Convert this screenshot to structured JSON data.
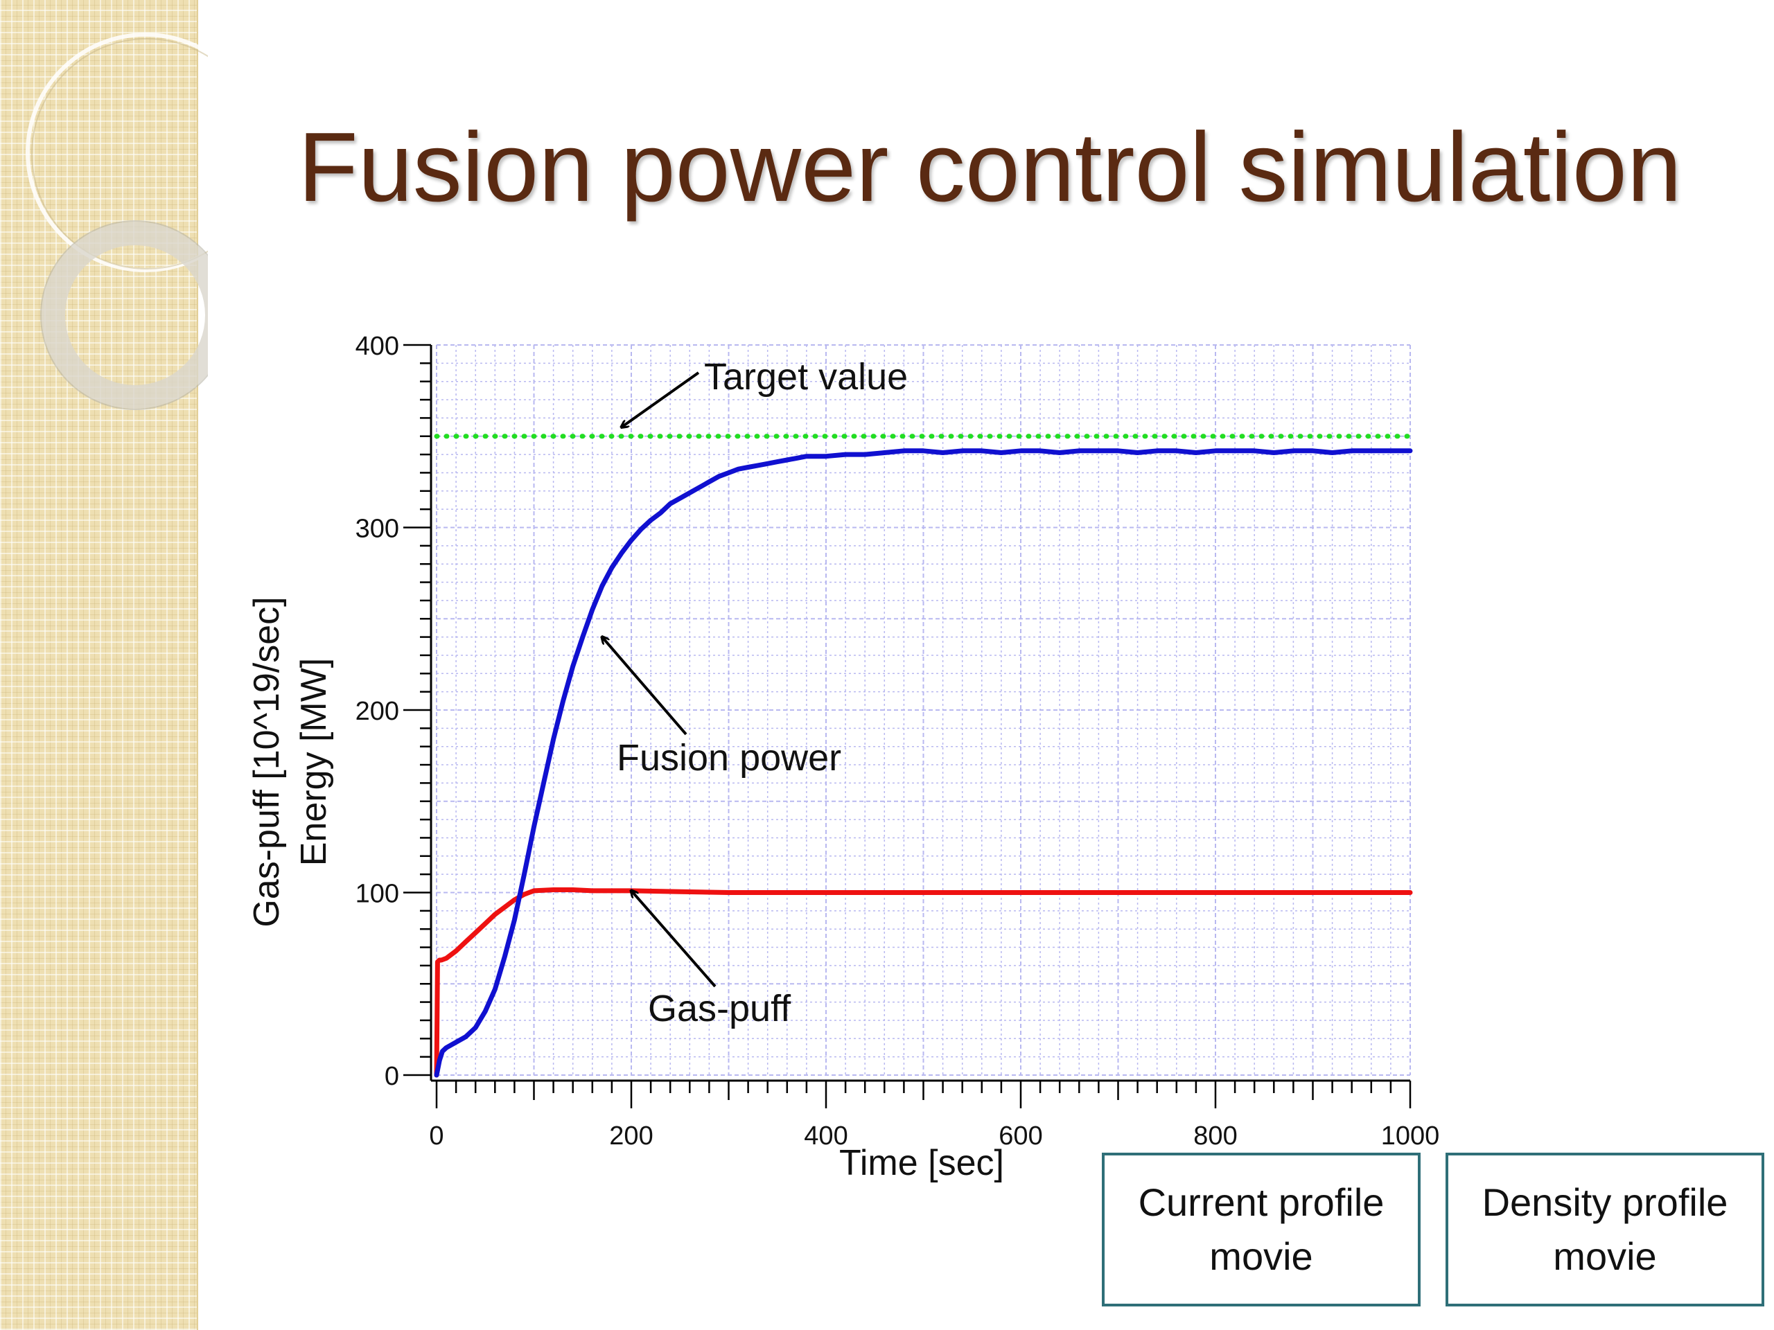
{
  "slide": {
    "title": "Fusion power control simulation"
  },
  "buttons": {
    "current_profile": {
      "line1": "Current profile",
      "line2": "movie"
    },
    "density_profile": {
      "line1": "Density profile",
      "line2": "movie"
    }
  },
  "colors": {
    "fusion_power": "#1010d0",
    "gas_puff": "#ee1111",
    "target": "#22dd22",
    "grid": "#b8b8f0",
    "title": "#5a2a12",
    "button_border": "#2f6f78"
  },
  "icons": [
    "arrow-icon"
  ],
  "chart_data": {
    "type": "line",
    "xlabel": "Time [sec]",
    "ylabel_line1": "Gas-puff [10^19/sec]",
    "ylabel_line2": "Energy [MW]",
    "xlim": [
      0,
      1000
    ],
    "ylim": [
      0,
      400
    ],
    "xticks": [
      0,
      200,
      400,
      600,
      800,
      1000
    ],
    "yticks": [
      0,
      100,
      200,
      300,
      400
    ],
    "grid": true,
    "series": [
      {
        "name": "Fusion power",
        "style": "solid",
        "x": [
          0,
          3,
          6,
          10,
          20,
          30,
          40,
          50,
          60,
          70,
          80,
          90,
          100,
          110,
          120,
          130,
          140,
          150,
          160,
          170,
          180,
          190,
          200,
          210,
          220,
          230,
          240,
          250,
          260,
          270,
          280,
          290,
          300,
          310,
          320,
          330,
          340,
          350,
          360,
          370,
          380,
          390,
          400,
          420,
          440,
          460,
          480,
          500,
          520,
          540,
          560,
          580,
          600,
          620,
          640,
          660,
          680,
          700,
          720,
          740,
          760,
          780,
          800,
          820,
          840,
          860,
          880,
          900,
          920,
          940,
          960,
          980,
          1000
        ],
        "y": [
          0,
          8,
          13,
          15,
          18,
          21,
          26,
          35,
          47,
          65,
          85,
          110,
          136,
          160,
          184,
          205,
          224,
          240,
          255,
          268,
          278,
          286,
          293,
          299,
          304,
          308,
          313,
          316,
          319,
          322,
          325,
          328,
          330,
          332,
          333,
          334,
          335,
          336,
          337,
          338,
          339,
          339,
          339,
          340,
          340,
          341,
          342,
          342,
          341,
          342,
          342,
          341,
          342,
          342,
          341,
          342,
          342,
          342,
          341,
          342,
          342,
          341,
          342,
          342,
          342,
          341,
          342,
          342,
          341,
          342,
          342,
          342,
          342
        ]
      },
      {
        "name": "Gas-puff",
        "style": "solid",
        "x": [
          0,
          0.5,
          1,
          3,
          5,
          10,
          20,
          30,
          40,
          50,
          60,
          70,
          80,
          90,
          100,
          120,
          140,
          160,
          180,
          200,
          250,
          300,
          400,
          500,
          600,
          700,
          800,
          900,
          1000
        ],
        "y": [
          0,
          30,
          62,
          63,
          63,
          64,
          68,
          73,
          78,
          83,
          88,
          92,
          96,
          99,
          101,
          101.5,
          101.5,
          101,
          101,
          101,
          100.5,
          100,
          100,
          100,
          100,
          100,
          100,
          100,
          100
        ]
      },
      {
        "name": "Target value",
        "style": "dotted",
        "x": [
          0,
          1000
        ],
        "y": [
          350,
          350
        ]
      }
    ],
    "annotations": [
      {
        "text": "Target value",
        "points_to": [
          190,
          355
        ]
      },
      {
        "text": "Fusion power",
        "points_to": [
          170,
          240
        ]
      },
      {
        "text": "Gas-puff",
        "points_to": [
          200,
          101
        ]
      }
    ]
  }
}
